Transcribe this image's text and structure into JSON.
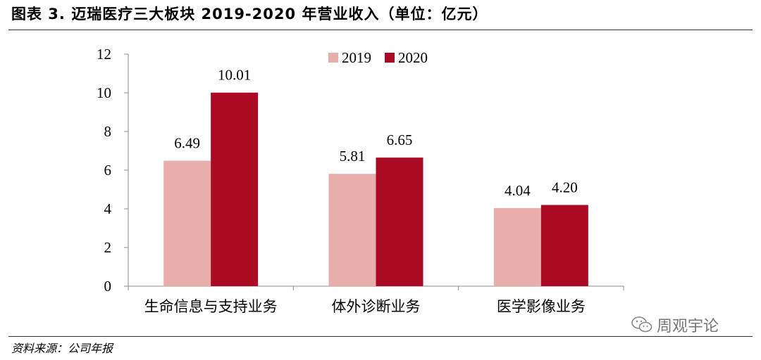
{
  "title": "图表 3. 迈瑞医疗三大板块 2019-2020 年营业收入（单位：亿元）",
  "source": "资料来源：公司年报",
  "watermark": {
    "text": "周观宇论",
    "icon": "wechat-icon"
  },
  "colors": {
    "s2019": "#e8aeac",
    "s2020": "#aa0a23",
    "axis": "#8c8c8c"
  },
  "chart_data": {
    "type": "bar",
    "title": "",
    "xlabel": "",
    "ylabel": "",
    "categories": [
      "生命信息与支持业务",
      "体外诊断业务",
      "医学影像业务"
    ],
    "series": [
      {
        "name": "2019",
        "values": [
          6.49,
          5.81,
          4.04
        ]
      },
      {
        "name": "2020",
        "values": [
          10.01,
          6.65,
          4.2
        ]
      }
    ],
    "ylim": [
      0,
      12
    ],
    "yticks": [
      0,
      2,
      4,
      6,
      8,
      10,
      12
    ],
    "data_labels": [
      [
        "6.49",
        "5.81",
        "4.04"
      ],
      [
        "10.01",
        "6.65",
        "4.20"
      ]
    ],
    "grid": false,
    "legend_position": "top-center"
  }
}
